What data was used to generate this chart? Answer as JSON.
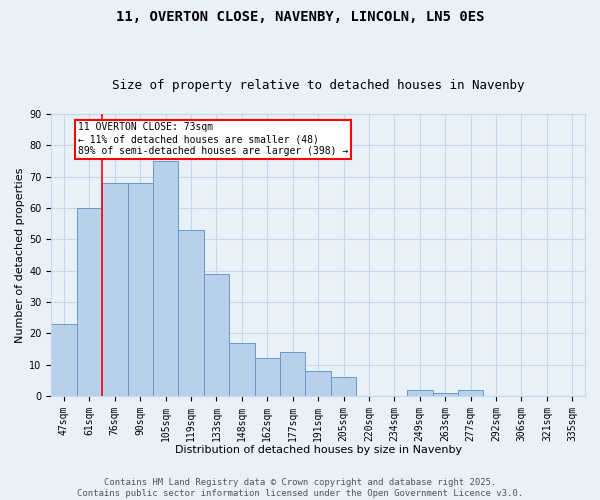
{
  "title1": "11, OVERTON CLOSE, NAVENBY, LINCOLN, LN5 0ES",
  "title2": "Size of property relative to detached houses in Navenby",
  "xlabel": "Distribution of detached houses by size in Navenby",
  "ylabel": "Number of detached properties",
  "bins": [
    "47sqm",
    "61sqm",
    "76sqm",
    "90sqm",
    "105sqm",
    "119sqm",
    "133sqm",
    "148sqm",
    "162sqm",
    "177sqm",
    "191sqm",
    "205sqm",
    "220sqm",
    "234sqm",
    "249sqm",
    "263sqm",
    "277sqm",
    "292sqm",
    "306sqm",
    "321sqm",
    "335sqm"
  ],
  "values": [
    23,
    60,
    68,
    68,
    75,
    53,
    39,
    17,
    12,
    14,
    8,
    6,
    0,
    0,
    2,
    1,
    2,
    0,
    0,
    0,
    0
  ],
  "bar_color": "#b8d0ea",
  "bar_edge_color": "#6699cc",
  "grid_color": "#c8d8ec",
  "bg_color": "#e8f0f8",
  "annotation_text": "11 OVERTON CLOSE: 73sqm\n← 11% of detached houses are smaller (48)\n89% of semi-detached houses are larger (398) →",
  "annotation_box_color": "white",
  "annotation_box_edge": "red",
  "ylim": [
    0,
    90
  ],
  "yticks": [
    0,
    10,
    20,
    30,
    40,
    50,
    60,
    70,
    80,
    90
  ],
  "footer": "Contains HM Land Registry data © Crown copyright and database right 2025.\nContains public sector information licensed under the Open Government Licence v3.0.",
  "title_fontsize": 10,
  "subtitle_fontsize": 9,
  "axis_label_fontsize": 8,
  "tick_fontsize": 7,
  "footer_fontsize": 6.5
}
